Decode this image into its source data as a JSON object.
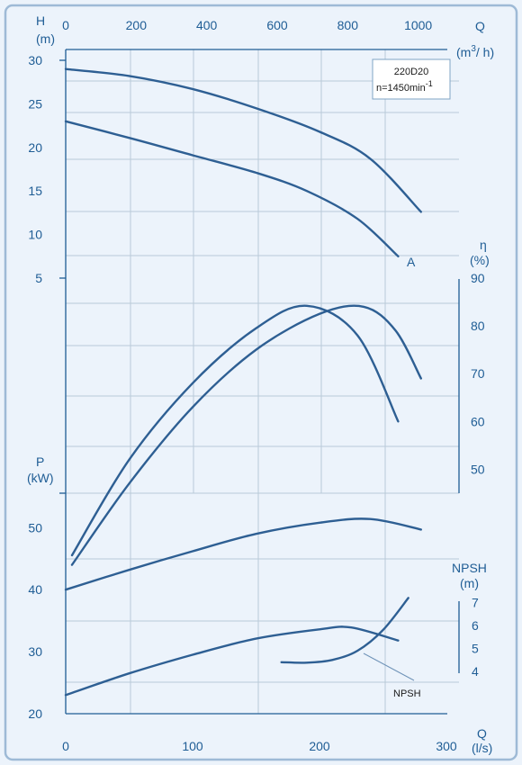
{
  "chart_data": {
    "type": "line",
    "model_label": "220D20",
    "speed_label": "n=1450min",
    "speed_exp": "-1",
    "curve_label_A": "A",
    "npsh_label": "NPSH",
    "axes": {
      "q_top": {
        "label": "Q",
        "unit": "(m",
        "unit_sup": "3",
        "unit_tail": "/ h)",
        "range": [
          0,
          1000
        ],
        "ticks": [
          0,
          200,
          400,
          600,
          800,
          1000
        ]
      },
      "q_bottom": {
        "label": "Q",
        "unit": "(l/s)",
        "range": [
          0,
          300
        ],
        "ticks": [
          0,
          100,
          200,
          300
        ]
      },
      "head": {
        "label": "H",
        "unit": "(m)",
        "range": [
          5,
          30
        ],
        "ticks": [
          5,
          10,
          15,
          20,
          25,
          30
        ]
      },
      "efficiency": {
        "label": "η",
        "unit": "(%)",
        "range": [
          45,
          90
        ],
        "ticks": [
          50,
          60,
          70,
          80,
          90
        ]
      },
      "power": {
        "label": "P",
        "unit": "(kW)",
        "range": [
          20,
          55
        ],
        "ticks": [
          20,
          30,
          40,
          50
        ]
      },
      "npsh": {
        "label": "NPSH",
        "unit": "(m)",
        "range": [
          3.7,
          7
        ],
        "ticks": [
          4,
          5,
          6,
          7
        ]
      }
    },
    "series": [
      {
        "axis": "head",
        "x": [
          0,
          50,
          100,
          150,
          200,
          240,
          280
        ],
        "y": [
          29,
          28.2,
          26.7,
          24.5,
          21.8,
          18.7,
          12.6
        ]
      },
      {
        "axis": "head",
        "x": [
          0,
          50,
          100,
          150,
          190,
          230,
          262
        ],
        "y": [
          23,
          21.1,
          19.1,
          17.1,
          15,
          11.8,
          7.5
        ]
      },
      {
        "axis": "efficiency",
        "x": [
          5,
          50,
          100,
          150,
          190,
          230,
          262
        ],
        "y": [
          32,
          52,
          68,
          79.5,
          84.2,
          78,
          60
        ]
      },
      {
        "axis": "efficiency",
        "x": [
          5,
          50,
          100,
          150,
          200,
          235,
          260,
          280
        ],
        "y": [
          30,
          47,
          63,
          75,
          82.5,
          84,
          79,
          69
        ]
      },
      {
        "axis": "power",
        "x": [
          0,
          50,
          100,
          150,
          200,
          240,
          280
        ],
        "y": [
          40,
          43.2,
          46.2,
          49,
          50.8,
          51.4,
          49.7
        ]
      },
      {
        "axis": "power",
        "x": [
          0,
          50,
          100,
          150,
          200,
          225,
          262
        ],
        "y": [
          23,
          26.5,
          29.5,
          32.1,
          33.6,
          33.9,
          31.8
        ]
      },
      {
        "axis": "npsh",
        "x": [
          170,
          190,
          210,
          230,
          250,
          270
        ],
        "y": [
          4.4,
          4.38,
          4.5,
          4.9,
          5.8,
          7.2
        ]
      }
    ]
  }
}
